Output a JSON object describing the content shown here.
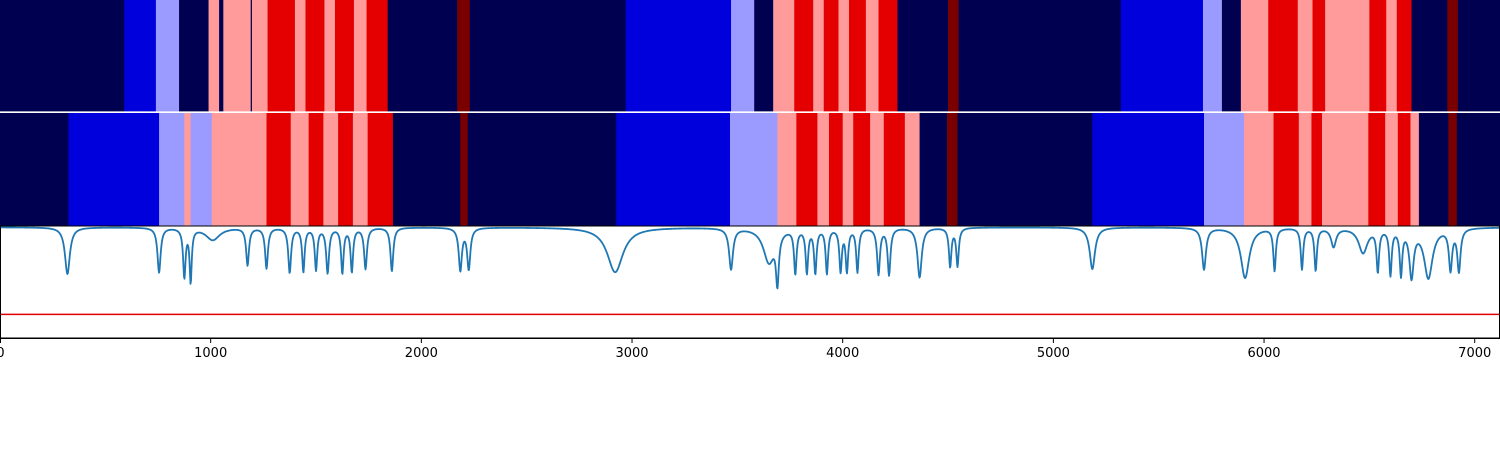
{
  "chart_data": {
    "type": "heatmap",
    "title": "",
    "xlabel": "",
    "ylabel": "",
    "xlim": [
      0,
      7120
    ],
    "xticks": [
      0,
      1000,
      2000,
      3000,
      4000,
      5000,
      6000,
      7000
    ],
    "xtick_labels": [
      "0",
      "1000",
      "2000",
      "3000",
      "4000",
      "5000",
      "6000",
      "7000"
    ],
    "grid": false,
    "colors": {
      "c0": "#000050",
      "c1": "#0000dd",
      "c2": "#9b9bff",
      "c3": "#ff9b9b",
      "c4": "#e40000",
      "c5": "#7a0000"
    },
    "segmentation_tracks": [
      {
        "segments": [
          [
            0,
            590,
            "c0"
          ],
          [
            590,
            740,
            "c1"
          ],
          [
            740,
            850,
            "c2"
          ],
          [
            850,
            990,
            "c0"
          ],
          [
            990,
            1040,
            "c3"
          ],
          [
            1040,
            1060,
            "c0"
          ],
          [
            1060,
            1190,
            "c3"
          ],
          [
            1190,
            1196,
            "c0"
          ],
          [
            1196,
            1270,
            "c3"
          ],
          [
            1270,
            1400,
            "c4"
          ],
          [
            1400,
            1450,
            "c3"
          ],
          [
            1450,
            1540,
            "c4"
          ],
          [
            1540,
            1590,
            "c3"
          ],
          [
            1590,
            1680,
            "c4"
          ],
          [
            1680,
            1740,
            "c3"
          ],
          [
            1740,
            1840,
            "c4"
          ],
          [
            1840,
            2170,
            "c0"
          ],
          [
            2170,
            2230,
            "c5"
          ],
          [
            2230,
            2970,
            "c0"
          ],
          [
            2970,
            3470,
            "c1"
          ],
          [
            3470,
            3580,
            "c2"
          ],
          [
            3580,
            3670,
            "c0"
          ],
          [
            3670,
            3770,
            "c3"
          ],
          [
            3770,
            3860,
            "c4"
          ],
          [
            3860,
            3910,
            "c3"
          ],
          [
            3910,
            3980,
            "c4"
          ],
          [
            3980,
            4030,
            "c3"
          ],
          [
            4030,
            4110,
            "c4"
          ],
          [
            4110,
            4170,
            "c3"
          ],
          [
            4170,
            4260,
            "c4"
          ],
          [
            4260,
            4500,
            "c0"
          ],
          [
            4500,
            4550,
            "c5"
          ],
          [
            4550,
            5320,
            "c0"
          ],
          [
            5320,
            5710,
            "c1"
          ],
          [
            5710,
            5800,
            "c2"
          ],
          [
            5800,
            5890,
            "c0"
          ],
          [
            5890,
            6020,
            "c3"
          ],
          [
            6020,
            6160,
            "c4"
          ],
          [
            6160,
            6230,
            "c3"
          ],
          [
            6230,
            6290,
            "c4"
          ],
          [
            6290,
            6500,
            "c3"
          ],
          [
            6500,
            6580,
            "c4"
          ],
          [
            6580,
            6630,
            "c3"
          ],
          [
            6630,
            6700,
            "c4"
          ],
          [
            6700,
            6870,
            "c0"
          ],
          [
            6870,
            6920,
            "c5"
          ],
          [
            6920,
            7120,
            "c0"
          ]
        ]
      },
      {
        "segments": [
          [
            0,
            325,
            "c0"
          ],
          [
            325,
            755,
            "c1"
          ],
          [
            755,
            875,
            "c2"
          ],
          [
            875,
            905,
            "c3"
          ],
          [
            905,
            1005,
            "c2"
          ],
          [
            1005,
            1265,
            "c3"
          ],
          [
            1265,
            1380,
            "c4"
          ],
          [
            1380,
            1465,
            "c3"
          ],
          [
            1465,
            1535,
            "c4"
          ],
          [
            1535,
            1605,
            "c3"
          ],
          [
            1605,
            1675,
            "c4"
          ],
          [
            1675,
            1745,
            "c3"
          ],
          [
            1745,
            1865,
            "c4"
          ],
          [
            1865,
            2185,
            "c0"
          ],
          [
            2185,
            2220,
            "c5"
          ],
          [
            2220,
            2925,
            "c0"
          ],
          [
            2925,
            3465,
            "c1"
          ],
          [
            3465,
            3690,
            "c2"
          ],
          [
            3690,
            3780,
            "c3"
          ],
          [
            3780,
            3880,
            "c4"
          ],
          [
            3880,
            3935,
            "c3"
          ],
          [
            3935,
            4000,
            "c4"
          ],
          [
            4000,
            4050,
            "c3"
          ],
          [
            4050,
            4130,
            "c4"
          ],
          [
            4130,
            4195,
            "c3"
          ],
          [
            4195,
            4295,
            "c4"
          ],
          [
            4295,
            4365,
            "c3"
          ],
          [
            4365,
            4495,
            "c0"
          ],
          [
            4495,
            4545,
            "c5"
          ],
          [
            4545,
            5185,
            "c0"
          ],
          [
            5185,
            5715,
            "c1"
          ],
          [
            5715,
            5905,
            "c2"
          ],
          [
            5905,
            6045,
            "c3"
          ],
          [
            6045,
            6165,
            "c4"
          ],
          [
            6165,
            6225,
            "c3"
          ],
          [
            6225,
            6275,
            "c4"
          ],
          [
            6275,
            6495,
            "c3"
          ],
          [
            6495,
            6575,
            "c4"
          ],
          [
            6575,
            6635,
            "c3"
          ],
          [
            6635,
            6695,
            "c4"
          ],
          [
            6695,
            6735,
            "c3"
          ],
          [
            6735,
            6875,
            "c0"
          ],
          [
            6875,
            6915,
            "c5"
          ],
          [
            6915,
            7120,
            "c0"
          ]
        ]
      }
    ],
    "series": [
      {
        "color": "#1f77b4",
        "baseline": 1.0,
        "peaks": [
          [
            320,
            0.75,
            14
          ],
          [
            755,
            0.72,
            9
          ],
          [
            875,
            0.78,
            7
          ],
          [
            905,
            0.85,
            6
          ],
          [
            1010,
            0.2,
            40
          ],
          [
            1175,
            0.6,
            8
          ],
          [
            1265,
            0.65,
            8
          ],
          [
            1375,
            0.72,
            8
          ],
          [
            1440,
            0.7,
            7
          ],
          [
            1500,
            0.67,
            7
          ],
          [
            1555,
            0.72,
            8
          ],
          [
            1625,
            0.72,
            7
          ],
          [
            1670,
            0.7,
            7
          ],
          [
            1735,
            0.66,
            8
          ],
          [
            1860,
            0.7,
            8
          ],
          [
            2185,
            0.68,
            9
          ],
          [
            2225,
            0.66,
            9
          ],
          [
            2920,
            0.72,
            45
          ],
          [
            3470,
            0.66,
            11
          ],
          [
            3650,
            0.55,
            32
          ],
          [
            3690,
            0.76,
            8
          ],
          [
            3775,
            0.71,
            7
          ],
          [
            3830,
            0.7,
            7
          ],
          [
            3870,
            0.71,
            7
          ],
          [
            3925,
            0.72,
            7
          ],
          [
            3990,
            0.68,
            7
          ],
          [
            4020,
            0.68,
            7
          ],
          [
            4070,
            0.7,
            7
          ],
          [
            4170,
            0.74,
            8
          ],
          [
            4220,
            0.75,
            8
          ],
          [
            4365,
            0.8,
            12
          ],
          [
            4510,
            0.62,
            7
          ],
          [
            4545,
            0.61,
            7
          ],
          [
            5185,
            0.67,
            15
          ],
          [
            5715,
            0.67,
            11
          ],
          [
            5910,
            0.81,
            24
          ],
          [
            6050,
            0.68,
            7
          ],
          [
            6180,
            0.66,
            7
          ],
          [
            6245,
            0.68,
            7
          ],
          [
            6330,
            0.3,
            14
          ],
          [
            6470,
            0.4,
            25
          ],
          [
            6540,
            0.67,
            7
          ],
          [
            6600,
            0.73,
            7
          ],
          [
            6650,
            0.72,
            7
          ],
          [
            6700,
            0.76,
            12
          ],
          [
            6780,
            0.8,
            24
          ],
          [
            6885,
            0.65,
            9
          ],
          [
            6925,
            0.68,
            9
          ]
        ],
        "ylim": [
          -0.78,
          1.02
        ]
      }
    ],
    "threshold": {
      "value": -0.4,
      "color": "#e00000"
    }
  }
}
